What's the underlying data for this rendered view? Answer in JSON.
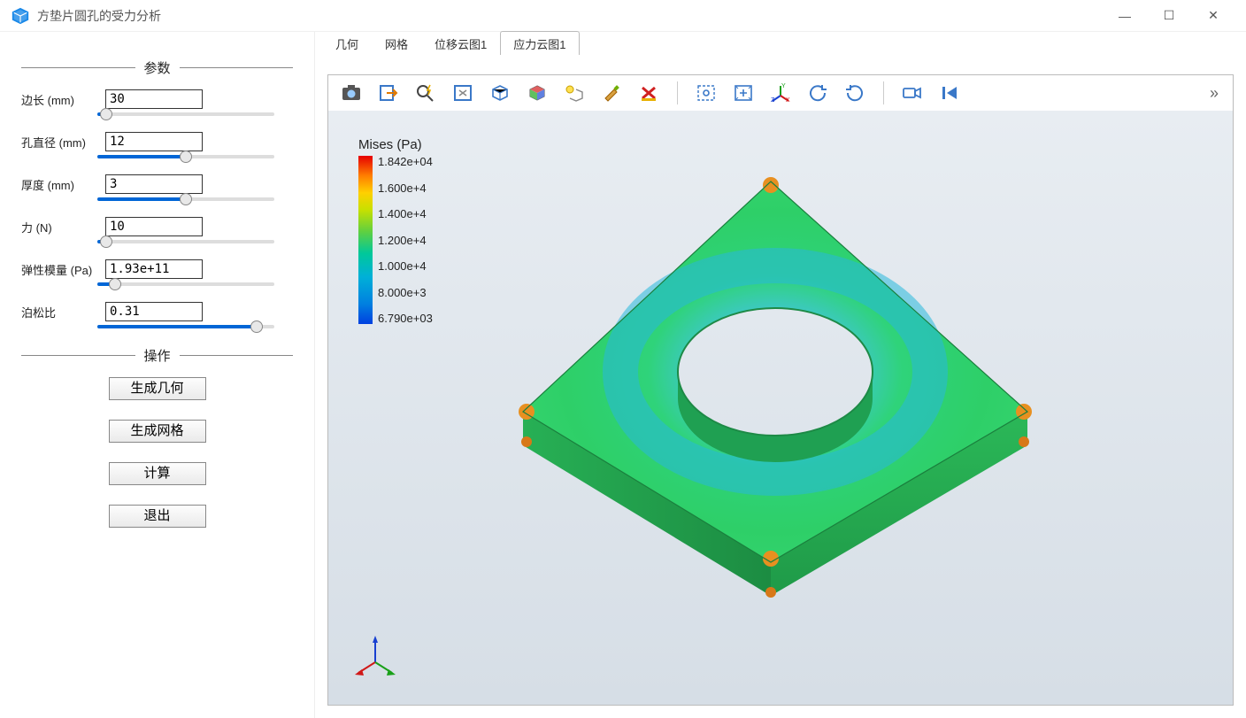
{
  "window": {
    "title": "方垫片圆孔的受力分析"
  },
  "sidebar": {
    "params_header": "参数",
    "ops_header": "操作",
    "params": [
      {
        "label": "边长 (mm)",
        "value": "30",
        "pct": 5
      },
      {
        "label": "孔直径 (mm)",
        "value": "12",
        "pct": 50
      },
      {
        "label": "厚度 (mm)",
        "value": "3",
        "pct": 50
      },
      {
        "label": "力 (N)",
        "value": "10",
        "pct": 5
      },
      {
        "label": "弹性模量 (Pa)",
        "value": "1.93e+11",
        "pct": 10
      },
      {
        "label": "泊松比",
        "value": "0.31",
        "pct": 90
      }
    ],
    "ops": [
      {
        "label": "生成几何"
      },
      {
        "label": "生成网格"
      },
      {
        "label": "计算"
      },
      {
        "label": "退出"
      }
    ]
  },
  "tabs": [
    {
      "label": "几何",
      "active": false
    },
    {
      "label": "网格",
      "active": false
    },
    {
      "label": "位移云图1",
      "active": false
    },
    {
      "label": "应力云图1",
      "active": true
    }
  ],
  "toolbar": {
    "icons": [
      "camera-icon",
      "export-icon",
      "search-lightning-icon",
      "fit-view-icon",
      "box-view-icon",
      "multicolor-cube-icon",
      "lightbulb-cube-icon",
      "brush-icon",
      "clear-x-icon"
    ],
    "icons2": [
      "select-area-icon",
      "expand-icon",
      "axes-xyz-icon",
      "rotate-ccw-icon",
      "rotate-cw-icon"
    ],
    "icons3": [
      "video-camera-icon",
      "skip-first-icon"
    ],
    "overflow": "»"
  },
  "colorbar": {
    "title": "Mises (Pa)",
    "ticks": [
      "1.842e+04",
      "1.600e+4",
      "1.400e+4",
      "1.200e+4",
      "1.000e+4",
      "8.000e+3",
      "6.790e+03"
    ],
    "gradient": [
      "#e60000",
      "#ff8000",
      "#ffd000",
      "#c8e000",
      "#60d040",
      "#00c89a",
      "#00b0d8",
      "#0080e0",
      "#0040e0"
    ]
  },
  "result_model": {
    "type": "3d-stress-contour",
    "shape": "square-plate-with-circular-hole",
    "base_color": "#2ecf68",
    "low_stress_color": "#2aa8e0",
    "high_stress_color": "#2ecf68",
    "corner_hotspot_color": "#e67000",
    "edge_shadow_color": "#1a9048",
    "hole_wall_color": "#24b060",
    "canvas_bg_top": "#e8edf2",
    "canvas_bg_bottom": "#d6dee6"
  },
  "triad": {
    "x_color": "#d01818",
    "y_color": "#18a018",
    "z_color": "#1840d0"
  }
}
